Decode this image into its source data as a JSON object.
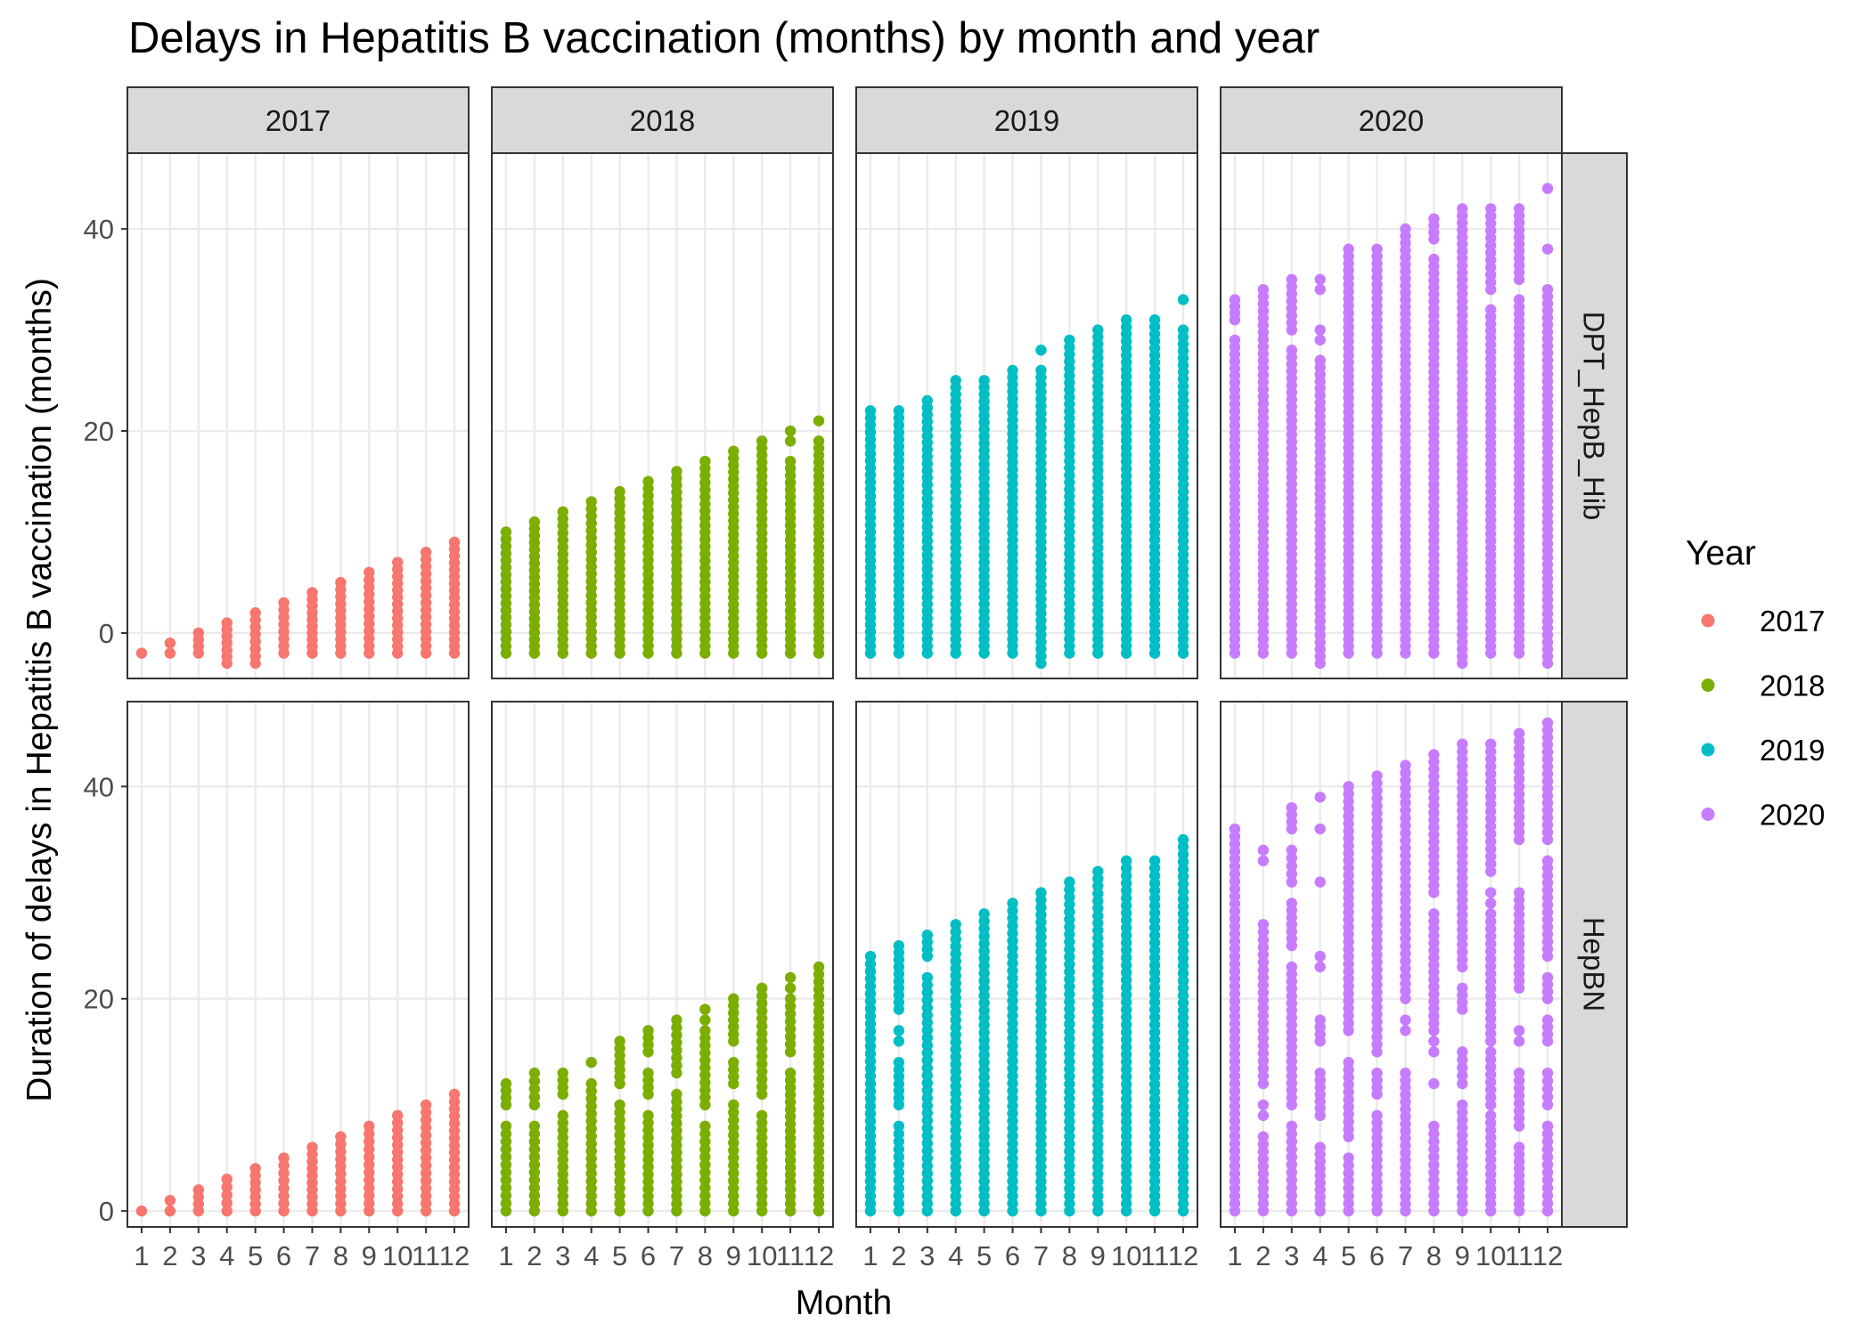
{
  "chart_data": {
    "type": "scatter",
    "title": "Delays in Hepatitis B vaccination (months) by month and year",
    "xlabel": "Month",
    "ylabel": "Duration of delays in Hepatitis B vaccination (months)",
    "x_ticks": [
      "1",
      "2",
      "3",
      "4",
      "5",
      "6",
      "7",
      "8",
      "9",
      "10",
      "11",
      "12"
    ],
    "y_ticks": [
      "0",
      "20",
      "40"
    ],
    "xlim": [
      0.5,
      12.5
    ],
    "ylim": {
      "DPT_HepB_Hib": [
        -4.5,
        47.5
      ],
      "HepBN": [
        -1.5,
        48
      ]
    },
    "legend": {
      "title": "Year",
      "placement": "right",
      "entries": [
        {
          "label": "2017",
          "color": "#F8766D"
        },
        {
          "label": "2018",
          "color": "#7CAE00"
        },
        {
          "label": "2019",
          "color": "#00BFC4"
        },
        {
          "label": "2020",
          "color": "#C77CFF"
        }
      ]
    },
    "column_facets": [
      "2017",
      "2018",
      "2019",
      "2020"
    ],
    "row_facets": [
      "DPT_HepB_Hib",
      "HepBN"
    ],
    "grid": true,
    "point_step_months": 0.7,
    "panels": [
      {
        "row": "DPT_HepB_Hib",
        "year": "2017",
        "color": "#F8766D",
        "ranges": [
          [
            [
              -2,
              -2
            ]
          ],
          [
            [
              -2,
              -1
            ]
          ],
          [
            [
              -2,
              0
            ]
          ],
          [
            [
              -3,
              1
            ]
          ],
          [
            [
              -3,
              2
            ]
          ],
          [
            [
              -2,
              3
            ]
          ],
          [
            [
              -2,
              4
            ]
          ],
          [
            [
              -2,
              5
            ]
          ],
          [
            [
              -2,
              6
            ]
          ],
          [
            [
              -2,
              7
            ]
          ],
          [
            [
              -2,
              8
            ]
          ],
          [
            [
              -2,
              9
            ]
          ]
        ]
      },
      {
        "row": "DPT_HepB_Hib",
        "year": "2018",
        "color": "#7CAE00",
        "ranges": [
          [
            [
              -2,
              10
            ]
          ],
          [
            [
              -2,
              11
            ]
          ],
          [
            [
              -2,
              12
            ]
          ],
          [
            [
              -2,
              13
            ]
          ],
          [
            [
              -2,
              14
            ]
          ],
          [
            [
              -2,
              15
            ]
          ],
          [
            [
              -2,
              16
            ]
          ],
          [
            [
              -2,
              17
            ]
          ],
          [
            [
              -2,
              18
            ]
          ],
          [
            [
              -2,
              19
            ]
          ],
          [
            [
              -2,
              17
            ],
            [
              19,
              20
            ]
          ],
          [
            [
              -2,
              19
            ],
            [
              21,
              21
            ]
          ]
        ]
      },
      {
        "row": "DPT_HepB_Hib",
        "year": "2019",
        "color": "#00BFC4",
        "ranges": [
          [
            [
              -2,
              22
            ]
          ],
          [
            [
              -2,
              22
            ]
          ],
          [
            [
              -2,
              23
            ]
          ],
          [
            [
              -2,
              25
            ]
          ],
          [
            [
              -2,
              25
            ]
          ],
          [
            [
              -2,
              26
            ]
          ],
          [
            [
              -3,
              26
            ],
            [
              28,
              28
            ]
          ],
          [
            [
              -2,
              29
            ]
          ],
          [
            [
              -2,
              30
            ]
          ],
          [
            [
              -2,
              31
            ]
          ],
          [
            [
              -2,
              31
            ]
          ],
          [
            [
              -2,
              30
            ],
            [
              33,
              33
            ]
          ]
        ]
      },
      {
        "row": "DPT_HepB_Hib",
        "year": "2020",
        "color": "#C77CFF",
        "ranges": [
          [
            [
              -2,
              29
            ],
            [
              31,
              33
            ]
          ],
          [
            [
              -2,
              34
            ]
          ],
          [
            [
              -2,
              28
            ],
            [
              30,
              35
            ]
          ],
          [
            [
              -3,
              27
            ],
            [
              29,
              30
            ],
            [
              34,
              35
            ]
          ],
          [
            [
              -2,
              38
            ]
          ],
          [
            [
              -2,
              38
            ]
          ],
          [
            [
              -2,
              40
            ]
          ],
          [
            [
              -2,
              37
            ],
            [
              39,
              41
            ]
          ],
          [
            [
              -3,
              42
            ]
          ],
          [
            [
              -2,
              32
            ],
            [
              34,
              42
            ]
          ],
          [
            [
              -2,
              33
            ],
            [
              35,
              42
            ]
          ],
          [
            [
              -3,
              34
            ],
            [
              38,
              38
            ],
            [
              44,
              44
            ]
          ]
        ]
      },
      {
        "row": "HepBN",
        "year": "2017",
        "color": "#F8766D",
        "ranges": [
          [
            [
              0,
              0
            ]
          ],
          [
            [
              0,
              1
            ]
          ],
          [
            [
              0,
              2
            ]
          ],
          [
            [
              0,
              3
            ]
          ],
          [
            [
              0,
              4
            ]
          ],
          [
            [
              0,
              5
            ]
          ],
          [
            [
              0,
              6
            ]
          ],
          [
            [
              0,
              7
            ]
          ],
          [
            [
              0,
              8
            ]
          ],
          [
            [
              0,
              9
            ]
          ],
          [
            [
              0,
              10
            ]
          ],
          [
            [
              0,
              11
            ]
          ]
        ]
      },
      {
        "row": "HepBN",
        "year": "2018",
        "color": "#7CAE00",
        "ranges": [
          [
            [
              0,
              8
            ],
            [
              10,
              12
            ]
          ],
          [
            [
              0,
              8
            ],
            [
              10,
              13
            ]
          ],
          [
            [
              0,
              9
            ],
            [
              11,
              13
            ]
          ],
          [
            [
              0,
              12
            ],
            [
              14,
              14
            ]
          ],
          [
            [
              0,
              10
            ],
            [
              12,
              16
            ]
          ],
          [
            [
              0,
              9
            ],
            [
              11,
              13
            ],
            [
              15,
              17
            ]
          ],
          [
            [
              0,
              11
            ],
            [
              13,
              18
            ]
          ],
          [
            [
              0,
              8
            ],
            [
              10,
              17
            ],
            [
              18,
              19
            ]
          ],
          [
            [
              0,
              10
            ],
            [
              12,
              14
            ],
            [
              16,
              20
            ]
          ],
          [
            [
              0,
              9
            ],
            [
              11,
              21
            ]
          ],
          [
            [
              0,
              13
            ],
            [
              15,
              20
            ],
            [
              21,
              22
            ]
          ],
          [
            [
              0,
              23
            ]
          ]
        ]
      },
      {
        "row": "HepBN",
        "year": "2019",
        "color": "#00BFC4",
        "ranges": [
          [
            [
              0,
              24
            ]
          ],
          [
            [
              0,
              8
            ],
            [
              10,
              14
            ],
            [
              16,
              17
            ],
            [
              19,
              25
            ]
          ],
          [
            [
              0,
              22
            ],
            [
              24,
              26
            ]
          ],
          [
            [
              0,
              27
            ]
          ],
          [
            [
              0,
              28
            ]
          ],
          [
            [
              0,
              29
            ]
          ],
          [
            [
              0,
              30
            ]
          ],
          [
            [
              0,
              31
            ]
          ],
          [
            [
              0,
              32
            ]
          ],
          [
            [
              0,
              33
            ]
          ],
          [
            [
              0,
              33
            ]
          ],
          [
            [
              0,
              35
            ]
          ]
        ]
      },
      {
        "row": "HepBN",
        "year": "2020",
        "color": "#C77CFF",
        "ranges": [
          [
            [
              0,
              36
            ]
          ],
          [
            [
              0,
              7
            ],
            [
              9,
              10
            ],
            [
              12,
              27
            ],
            [
              33,
              34
            ]
          ],
          [
            [
              0,
              8
            ],
            [
              10,
              23
            ],
            [
              25,
              29
            ],
            [
              31,
              34
            ],
            [
              36,
              38
            ]
          ],
          [
            [
              0,
              6
            ],
            [
              9,
              13
            ],
            [
              16,
              18
            ],
            [
              23,
              24
            ],
            [
              31,
              31
            ],
            [
              36,
              36
            ],
            [
              39,
              39
            ]
          ],
          [
            [
              0,
              5
            ],
            [
              7,
              14
            ],
            [
              17,
              40
            ]
          ],
          [
            [
              0,
              9
            ],
            [
              11,
              13
            ],
            [
              15,
              41
            ]
          ],
          [
            [
              0,
              13
            ],
            [
              17,
              18
            ],
            [
              20,
              42
            ]
          ],
          [
            [
              0,
              8
            ],
            [
              12,
              12
            ],
            [
              15,
              16
            ],
            [
              17,
              28
            ],
            [
              30,
              43
            ]
          ],
          [
            [
              0,
              10
            ],
            [
              12,
              15
            ],
            [
              19,
              21
            ],
            [
              23,
              44
            ]
          ],
          [
            [
              0,
              9
            ],
            [
              10,
              15
            ],
            [
              16,
              28
            ],
            [
              29,
              30
            ],
            [
              32,
              44
            ]
          ],
          [
            [
              0,
              6
            ],
            [
              8,
              13
            ],
            [
              16,
              17
            ],
            [
              21,
              30
            ],
            [
              35,
              45
            ]
          ],
          [
            [
              0,
              8
            ],
            [
              10,
              13
            ],
            [
              16,
              18
            ],
            [
              20,
              22
            ],
            [
              24,
              33
            ],
            [
              35,
              46
            ]
          ]
        ]
      }
    ]
  }
}
